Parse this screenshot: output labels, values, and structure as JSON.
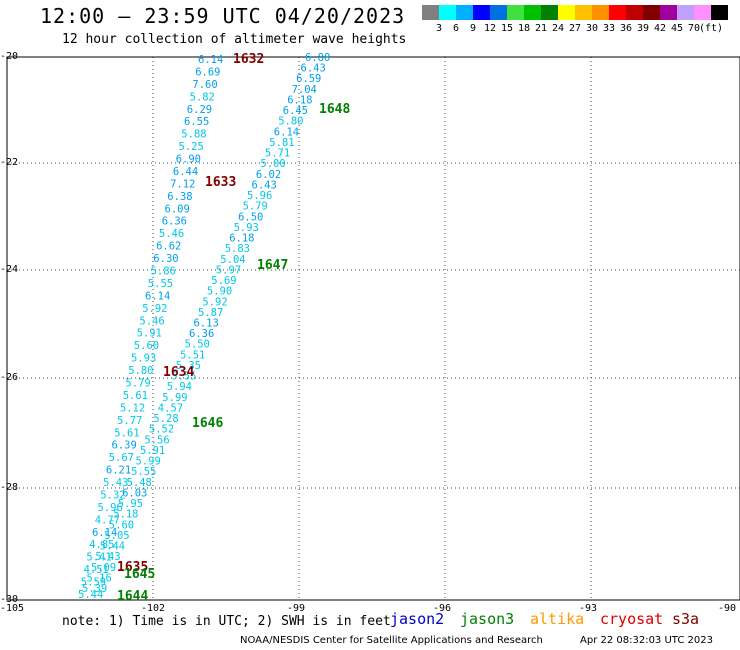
{
  "header": {
    "title": "12:00 — 23:59 UTC 04/20/2023",
    "subtitle": "12 hour collection of altimeter wave heights"
  },
  "colorbar": {
    "colors": [
      "#808080",
      "#00ffff",
      "#00b0ff",
      "#0000ff",
      "#0070e0",
      "#40e040",
      "#00c000",
      "#008000",
      "#ffff00",
      "#ffc000",
      "#ff9000",
      "#ff0000",
      "#c00000",
      "#800000",
      "#a000a0",
      "#c0a0ff",
      "#ff90ff",
      "#000000"
    ],
    "labels": [
      "3",
      "6",
      "9",
      "12",
      "15",
      "18",
      "21",
      "24",
      "27",
      "30",
      "33",
      "36",
      "39",
      "42",
      "45",
      "70",
      "(ft)"
    ]
  },
  "axes": {
    "y_labels": [
      "-20",
      "-22",
      "-24",
      "-26",
      "-28",
      "-30"
    ],
    "x_labels": [
      "-105",
      "-102",
      "-99",
      "-96",
      "-93",
      "-90"
    ]
  },
  "passes": [
    {
      "id": "1632",
      "color": "#800000"
    },
    {
      "id": "1648",
      "color": "#008000"
    },
    {
      "id": "1633",
      "color": "#800000"
    },
    {
      "id": "1647",
      "color": "#008000"
    },
    {
      "id": "1634",
      "color": "#800000"
    },
    {
      "id": "1646",
      "color": "#008000"
    },
    {
      "id": "1635",
      "color": "#800000"
    },
    {
      "id": "1645",
      "color": "#008000"
    },
    {
      "id": "1644",
      "color": "#008000"
    }
  ],
  "track_left": [
    "6.14",
    "6.69",
    "7.60",
    "5.82",
    "6.29",
    "6.55",
    "5.88",
    "5.25",
    "6.90",
    "6.44",
    "7.12",
    "6.38",
    "6.09",
    "6.36",
    "5.46",
    "6.62",
    "6.30",
    "5.86",
    "5.55",
    "6.14",
    "5.92",
    "5.46",
    "5.91",
    "5.60",
    "5.93",
    "5.80",
    "5.79",
    "5.61",
    "5.12",
    "5.77",
    "5.61",
    "6.39",
    "5.67",
    "6.21",
    "5.43",
    "5.32",
    "5.96",
    "4.77",
    "6.14",
    "4.85",
    "5.41",
    "4.51",
    "5.59",
    "5.44"
  ],
  "track_right": [
    "6.80",
    "6.43",
    "6.59",
    "7.04",
    "6.18",
    "6.45",
    "5.80",
    "6.14",
    "5.81",
    "5.71",
    "5.00",
    "6.02",
    "6.43",
    "5.96",
    "5.79",
    "6.50",
    "5.93",
    "6.18",
    "5.83",
    "5.04",
    "5.97",
    "5.69",
    "5.90",
    "5.92",
    "5.87",
    "6.13",
    "6.36",
    "5.50",
    "5.51",
    "5.35",
    "5.55",
    "5.94",
    "5.99",
    "4.57",
    "5.28",
    "5.52",
    "5.56",
    "5.91",
    "5.99",
    "5.55",
    "5.48",
    "6.03",
    "5.95",
    "5.18",
    "5.60",
    "5.05",
    "5.44",
    "5.43",
    "5.09",
    "5.16",
    "5.39"
  ],
  "footer": {
    "note": "note: 1) Time is in UTC; 2) SWH is in feet",
    "legend": [
      {
        "name": "jason2",
        "color": "#0000cc"
      },
      {
        "name": "jason3",
        "color": "#008000"
      },
      {
        "name": "altika",
        "color": "#ff9900"
      },
      {
        "name": "cryosat",
        "color": "#dd0000"
      },
      {
        "name": "s3a",
        "color": "#800000"
      }
    ],
    "credit": "NOAA/NESDIS Center for Satellite Applications and Research",
    "timestamp": "Apr 22 08:32:03 UTC 2023"
  }
}
